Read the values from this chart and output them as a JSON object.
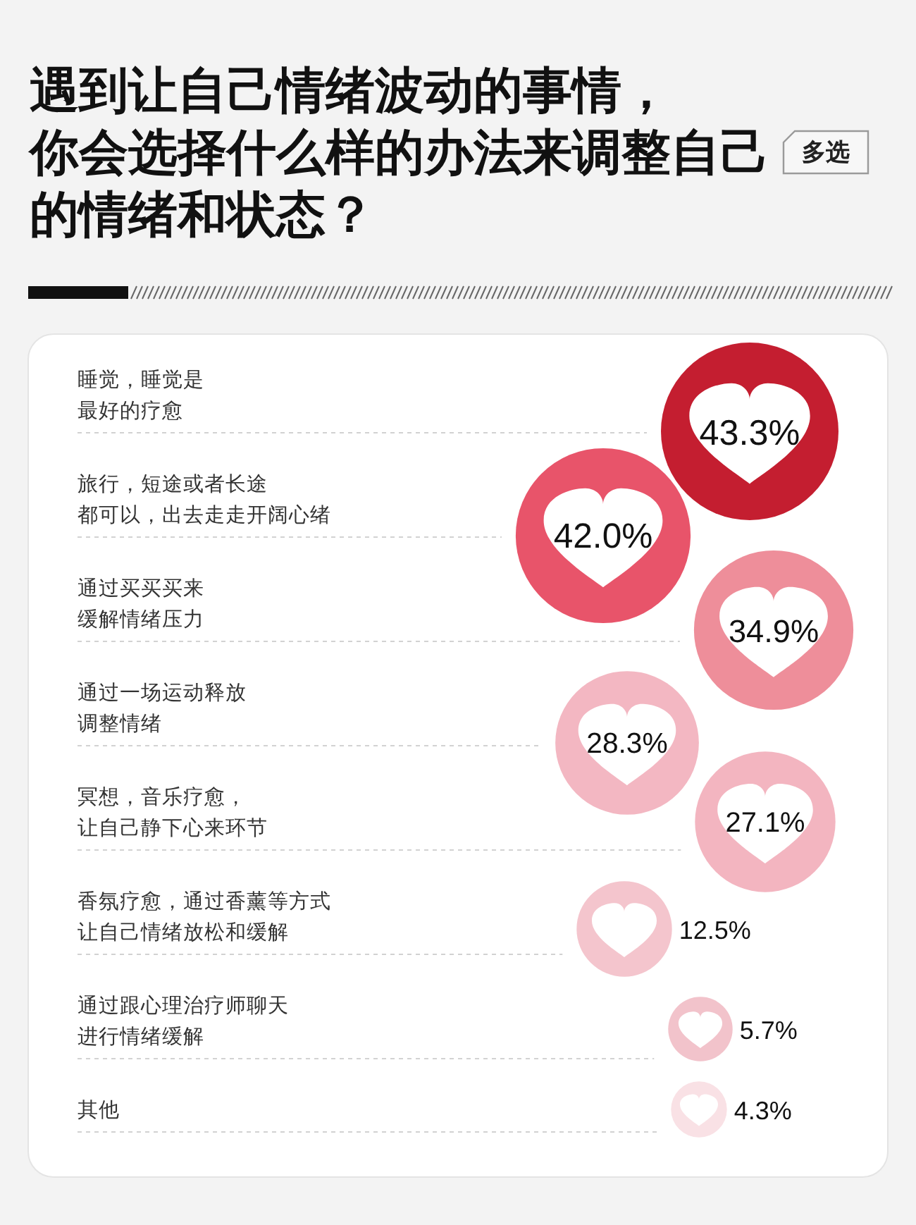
{
  "chart_data": {
    "type": "other",
    "title": "遇到让自己情绪波动的事情，你会选择什么样的办法来调整自己的情绪和状态？",
    "annotations": [
      "多选"
    ],
    "categories": [
      "睡觉，睡觉是最好的疗愈",
      "旅行，短途或者长途都可以，出去走走开阔心绪",
      "通过买买买来缓解情绪压力",
      "通过一场运动释放调整情绪",
      "冥想，音乐疗愈，让自己静下心来环节",
      "香氛疗愈，通过香薰等方式让自己情绪放松和缓解",
      "通过跟心理治疗师聊天进行情绪缓解",
      "其他"
    ],
    "values": [
      43.3,
      42.0,
      34.9,
      28.3,
      27.1,
      12.5,
      5.7,
      4.3
    ],
    "value_labels": [
      "43.3%",
      "42.0%",
      "34.9%",
      "28.3%",
      "27.1%",
      "12.5%",
      "5.7%",
      "4.3%"
    ],
    "colors": [
      "#c41e30",
      "#e8546a",
      "#ee8e9a",
      "#f3b7c2",
      "#f3b5c0",
      "#f4c5cd",
      "#f2c3cb",
      "#f9e1e5"
    ]
  }
}
